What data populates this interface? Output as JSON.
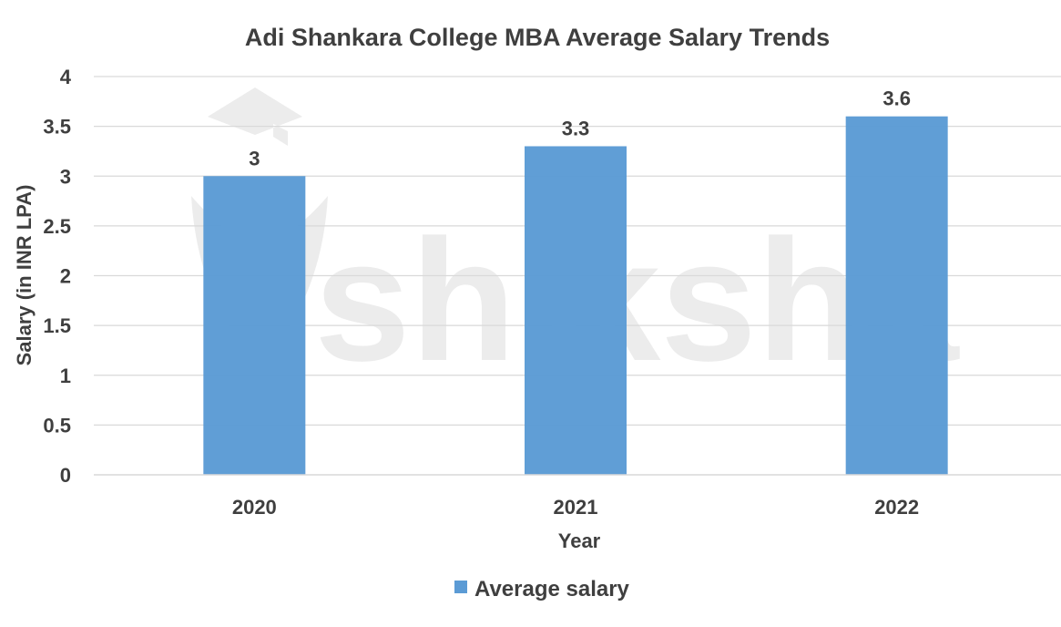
{
  "chart_data": {
    "type": "bar",
    "title": "Adi Shankara College MBA Average Salary Trends",
    "xlabel": "Year",
    "ylabel": "Salary (in INR LPA)",
    "categories": [
      "2020",
      "2021",
      "2022"
    ],
    "series": [
      {
        "name": "Average salary",
        "values": [
          3,
          3.3,
          3.6
        ],
        "color": "#5b9bd5"
      }
    ],
    "ylim": [
      0,
      4
    ],
    "yticks": [
      "0",
      "0.5",
      "1",
      "1.5",
      "2",
      "2.5",
      "3",
      "3.5",
      "4"
    ],
    "data_labels": [
      "3",
      "3.3",
      "3.6"
    ],
    "grid": true,
    "legend_position": "bottom"
  },
  "watermark": {
    "text": "shiksha"
  }
}
